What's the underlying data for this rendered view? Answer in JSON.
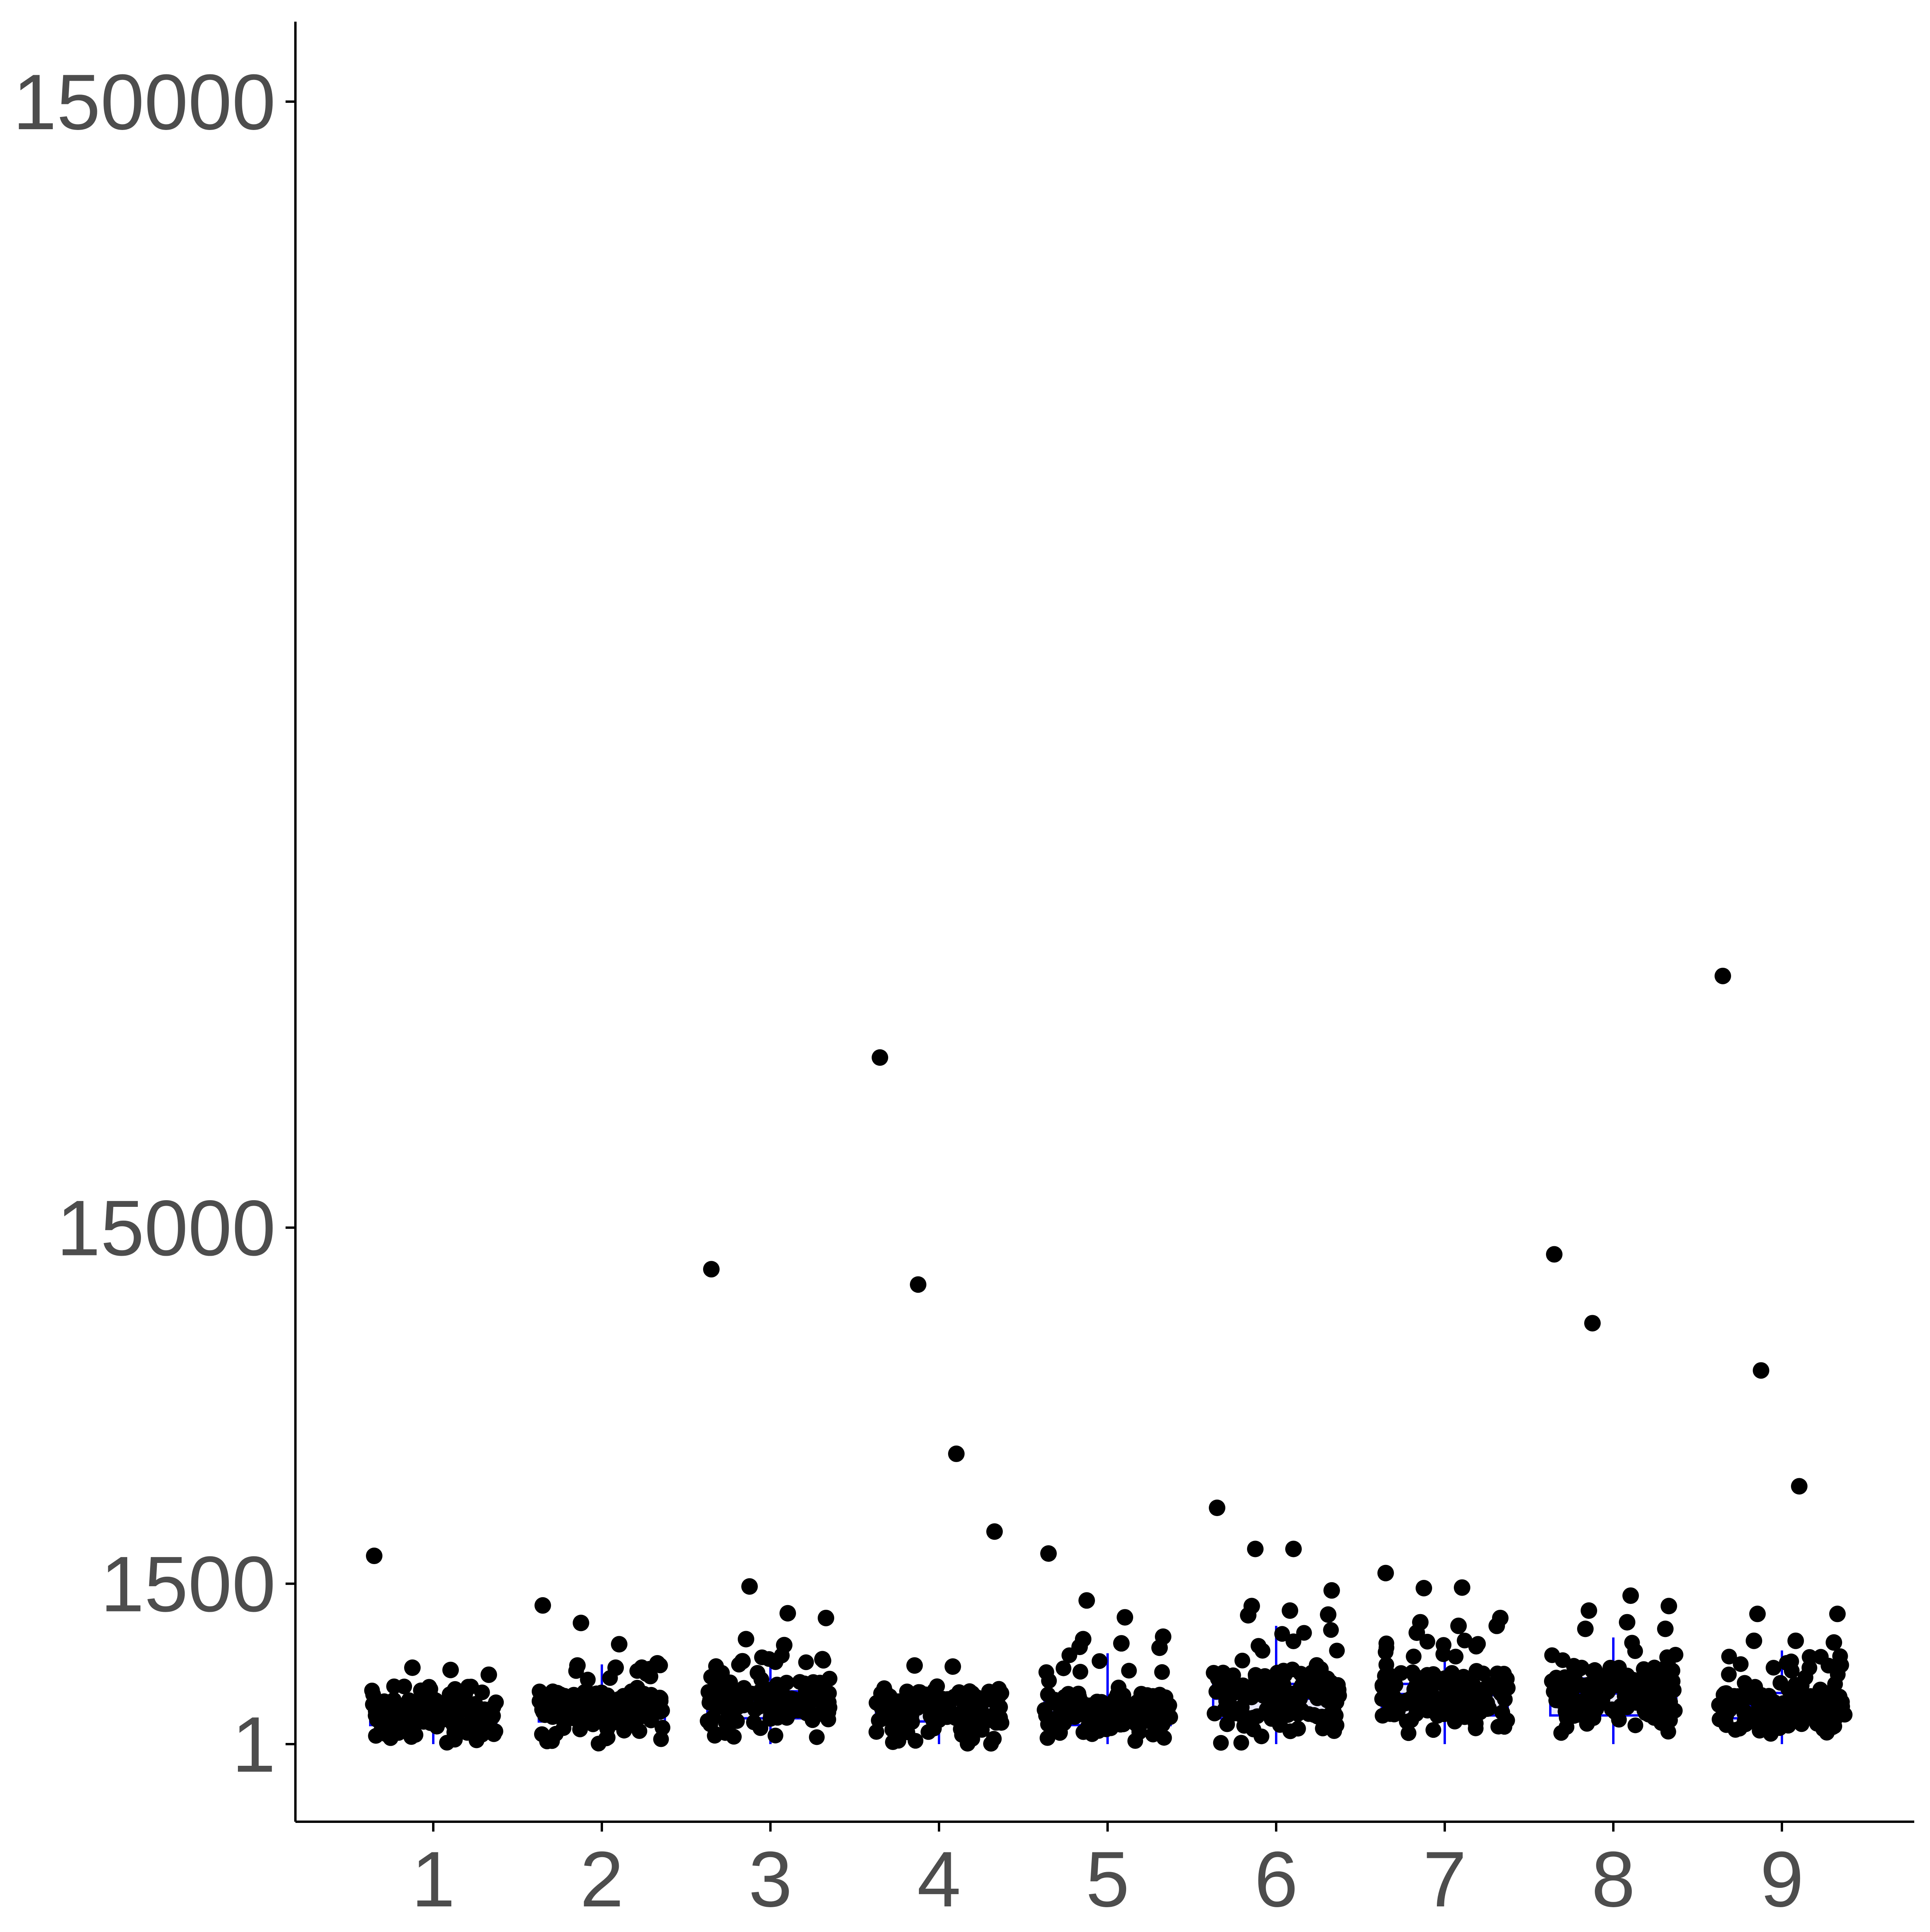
{
  "chart_data": {
    "type": "box",
    "title": "",
    "xlabel": "",
    "ylabel": "",
    "y_scale": "sqrt",
    "y_ticks": [
      {
        "value": 1,
        "label": "1"
      },
      {
        "value": 1500,
        "label": "1500"
      },
      {
        "value": 15000,
        "label": "15000"
      },
      {
        "value": 150000,
        "label": "150000"
      }
    ],
    "x_ticks": [
      "1",
      "2",
      "3",
      "4",
      "5",
      "6",
      "7",
      "8",
      "9"
    ],
    "colors": {
      "box": "#0000ff",
      "box_fill": "#d9d9f7",
      "points": "#000000",
      "axis": "#000000",
      "tick_label": "#4d4d4d"
    },
    "boxes": [
      {
        "category": "1",
        "q1": 30,
        "median": 70,
        "q3": 100,
        "whisker_low": 1,
        "whisker_high": 240
      },
      {
        "category": "2",
        "q1": 40,
        "median": 90,
        "q3": 140,
        "whisker_low": 1,
        "whisker_high": 390
      },
      {
        "category": "3",
        "q1": 50,
        "median": 120,
        "q3": 180,
        "whisker_low": 1,
        "whisker_high": 490
      },
      {
        "category": "4",
        "q1": 40,
        "median": 80,
        "q3": 130,
        "whisker_low": 1,
        "whisker_high": 220
      },
      {
        "category": "5",
        "q1": 30,
        "median": 70,
        "q3": 120,
        "whisker_low": 1,
        "whisker_high": 500
      },
      {
        "category": "6",
        "q1": 50,
        "median": 140,
        "q3": 230,
        "whisker_low": 1,
        "whisker_high": 830
      },
      {
        "category": "7",
        "q1": 60,
        "median": 160,
        "q3": 230,
        "whisker_low": 1,
        "whisker_high": 670
      },
      {
        "category": "8",
        "q1": 60,
        "median": 170,
        "q3": 270,
        "whisker_low": 1,
        "whisker_high": 680
      },
      {
        "category": "9",
        "q1": 50,
        "median": 100,
        "q3": 170,
        "whisker_low": 1,
        "whisker_high": 530
      }
    ],
    "outliers": [
      {
        "category": "1",
        "values": [
          2050,
          360,
          340,
          300
        ]
      },
      {
        "category": "2",
        "values": [
          1130,
          870,
          600,
          400,
          380,
          360
        ]
      },
      {
        "category": "3",
        "values": [
          12700,
          1450,
          1010,
          940,
          660,
          590,
          440,
          420
        ]
      },
      {
        "category": "4",
        "values": [
          26400,
          11900,
          4800,
          2600,
          380,
          370
        ]
      },
      {
        "category": "5",
        "values": [
          2100,
          1210,
          950,
          690,
          660,
          610,
          560,
          570
        ]
      },
      {
        "category": "6",
        "values": [
          3200,
          2200,
          2200,
          1380,
          1120,
          1050,
          990,
          980
        ]
      },
      {
        "category": "7",
        "values": [
          1700,
          1420,
          1430,
          940,
          880,
          830,
          830,
          740
        ]
      },
      {
        "category": "8",
        "values": [
          13500,
          10000,
          1290,
          1120,
          1050,
          880,
          790,
          790
        ]
      },
      {
        "category": "9",
        "values": [
          33000,
          7900,
          3800,
          1000,
          1000,
          640,
          620,
          640
        ]
      }
    ]
  }
}
